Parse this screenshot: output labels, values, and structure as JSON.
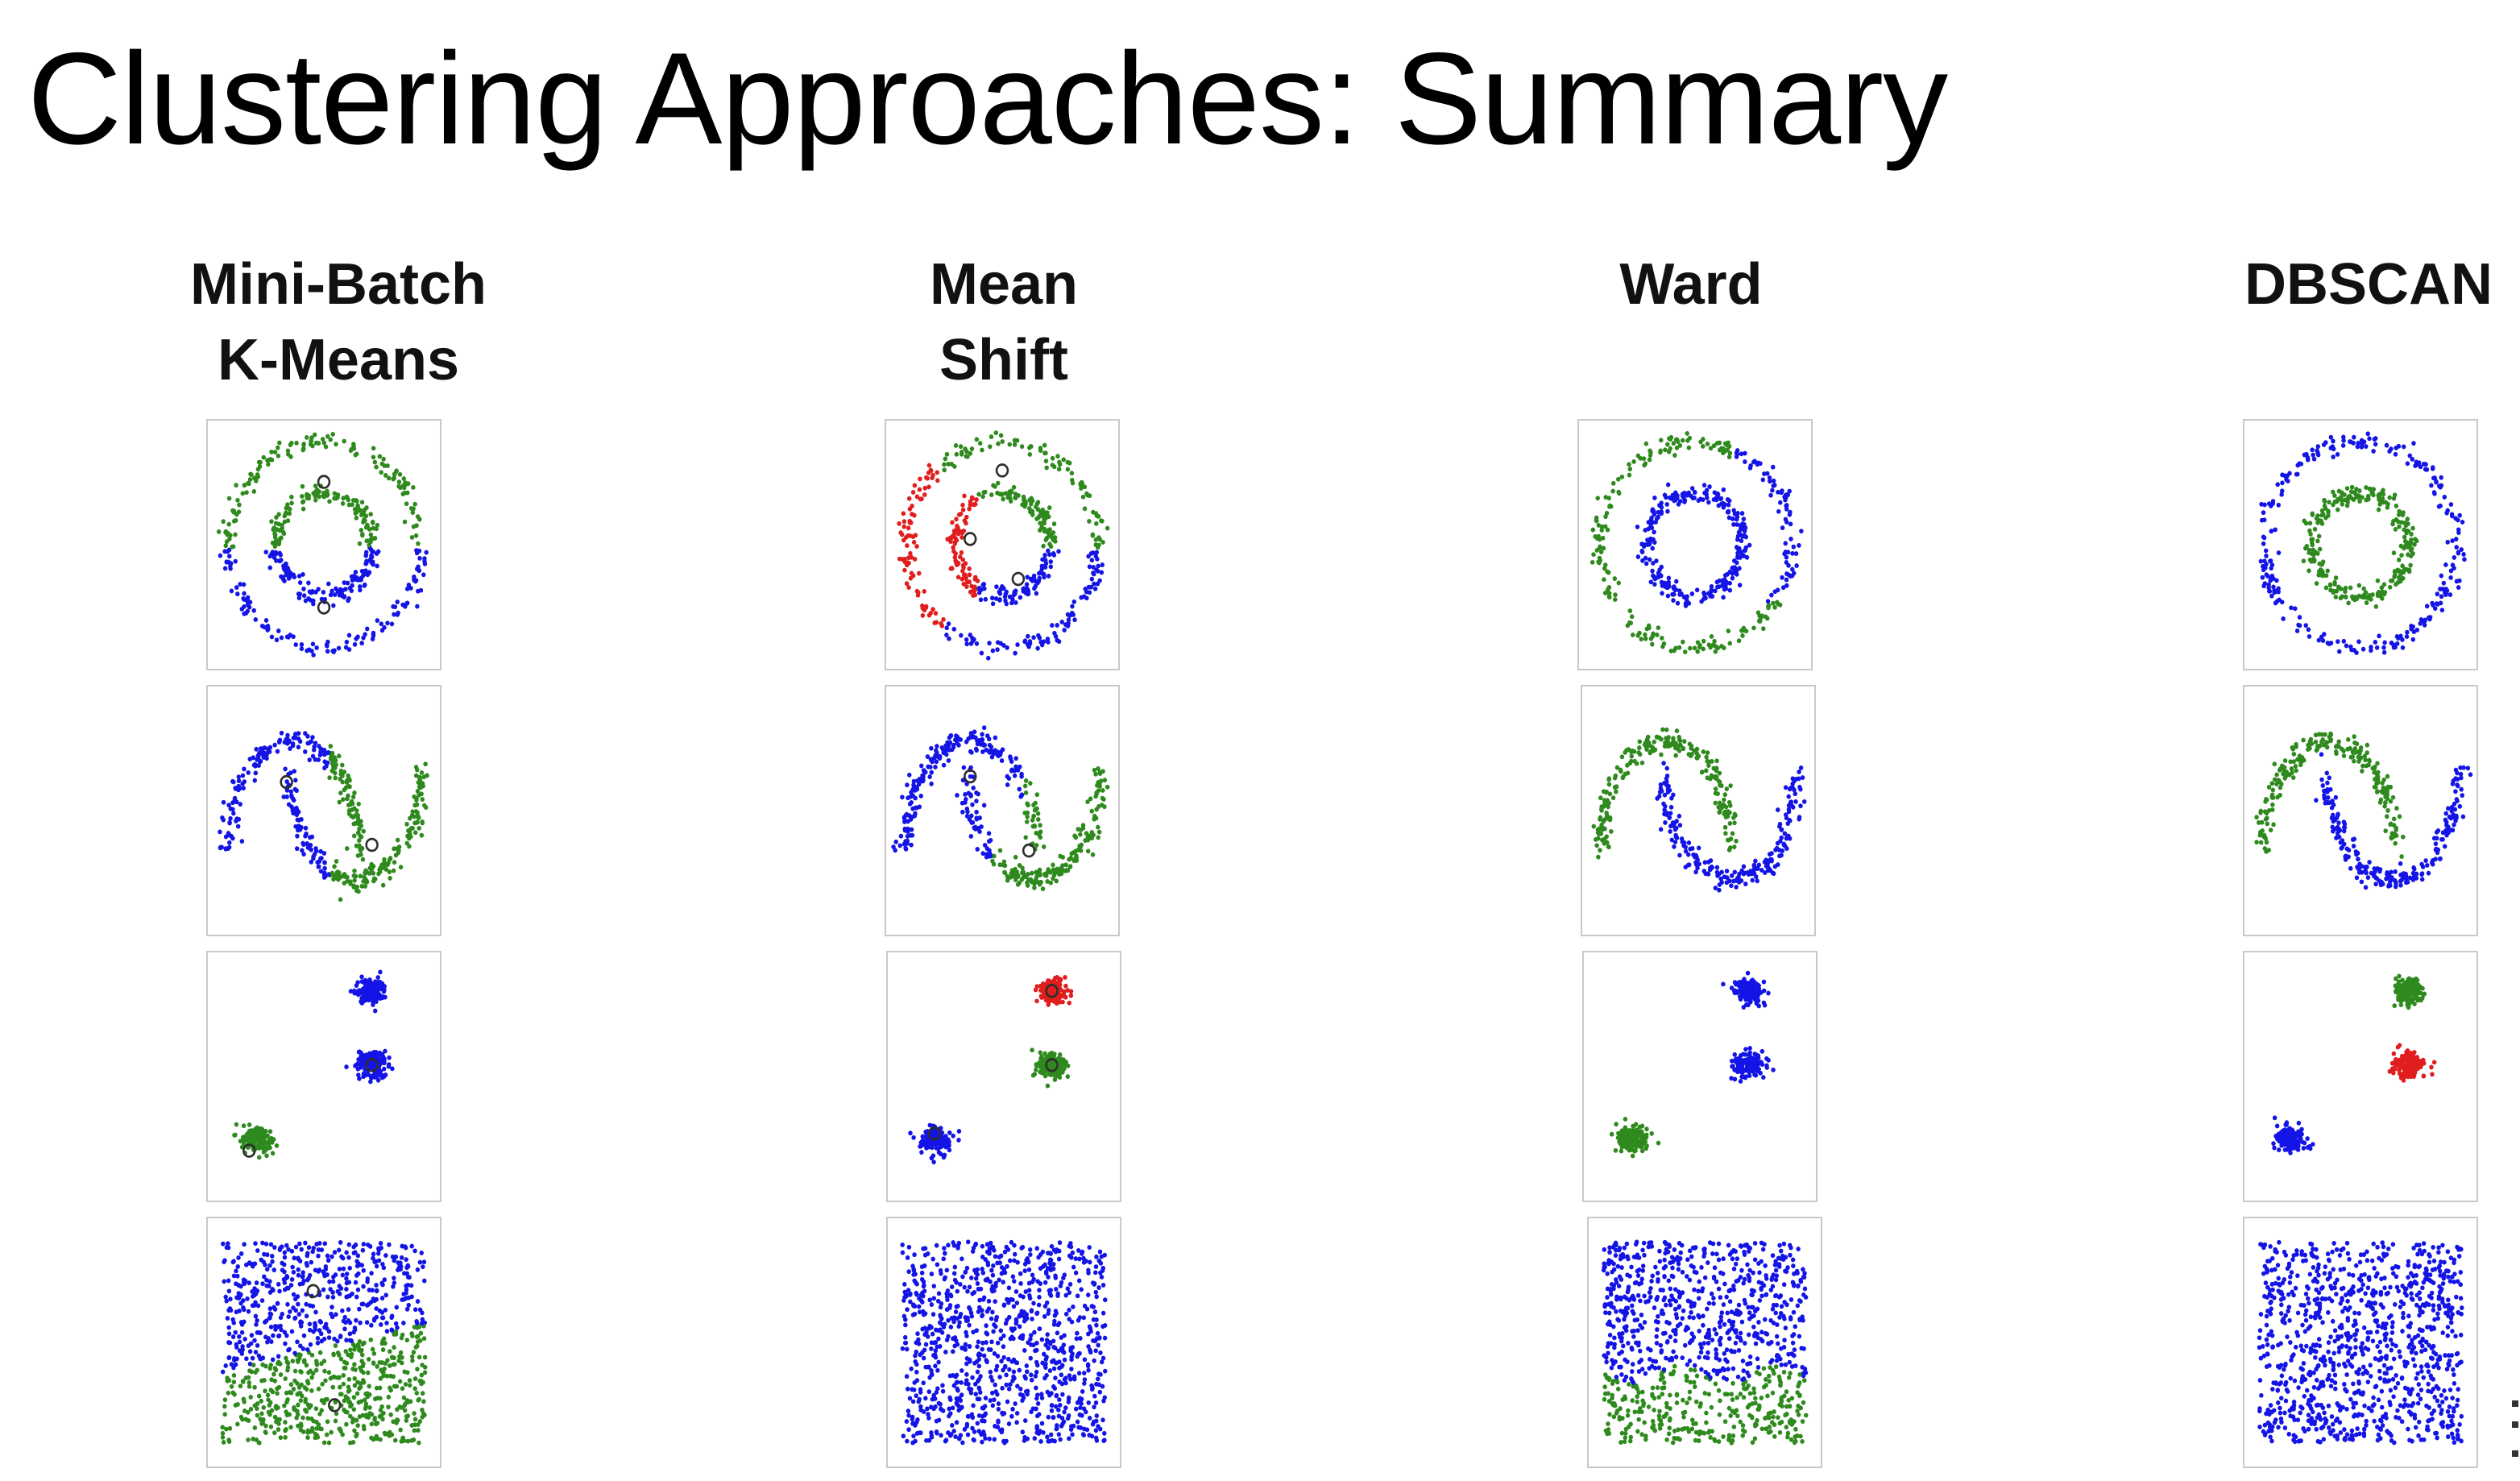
{
  "title": "Clustering Approaches: Summary",
  "colors": {
    "blue": "#1414e6",
    "green": "#2f8a1e",
    "red": "#e01e1e",
    "center": "#2e2e2e",
    "panel_border": "#c9c9c9"
  },
  "datasets": [
    "noisy-circles",
    "noisy-moons",
    "blobs",
    "no-structure"
  ],
  "algorithms": [
    {
      "id": "mini-batch-kmeans",
      "title": "Mini-Batch\nK-Means",
      "panels": [
        {
          "dataset": "noisy-circles",
          "clusters": [
            "green",
            "blue"
          ],
          "rule": "kmeans-circles",
          "centers": [
            [
              0.0,
              0.55
            ],
            [
              0.0,
              -0.55
            ]
          ]
        },
        {
          "dataset": "noisy-moons",
          "clusters": [
            "blue",
            "green"
          ],
          "rule": "kmeans-moons",
          "centers": [
            [
              -0.35,
              0.25
            ],
            [
              0.45,
              -0.3
            ]
          ]
        },
        {
          "dataset": "blobs",
          "clusters": [
            "blue",
            "blue",
            "green"
          ],
          "rule": "blobs",
          "centers": [
            [
              0.45,
              0.1
            ],
            [
              -0.7,
              -0.65
            ]
          ]
        },
        {
          "dataset": "no-structure",
          "clusters": [
            "blue",
            "green"
          ],
          "rule": "kmeans-square",
          "centers": [
            [
              -0.1,
              0.45
            ],
            [
              0.1,
              -0.55
            ]
          ]
        }
      ]
    },
    {
      "id": "mean-shift",
      "title": "Mean\nShift",
      "panels": [
        {
          "dataset": "noisy-circles",
          "clusters": [
            "green",
            "blue",
            "red"
          ],
          "rule": "meanshift-circles",
          "centers": [
            [
              0.0,
              0.65
            ],
            [
              -0.3,
              0.05
            ],
            [
              0.15,
              -0.3
            ]
          ]
        },
        {
          "dataset": "noisy-moons",
          "clusters": [
            "blue",
            "green"
          ],
          "rule": "meanshift-moons",
          "centers": [
            [
              -0.3,
              0.3
            ],
            [
              0.25,
              -0.35
            ]
          ]
        },
        {
          "dataset": "blobs",
          "clusters": [
            "red",
            "green",
            "blue"
          ],
          "rule": "blobs",
          "centers": [
            [
              0.45,
              0.75
            ],
            [
              0.45,
              0.1
            ],
            [
              -0.65,
              -0.5
            ]
          ]
        },
        {
          "dataset": "no-structure",
          "clusters": [
            "blue"
          ],
          "rule": "single",
          "centers": []
        }
      ]
    },
    {
      "id": "ward",
      "title": "Ward",
      "panels": [
        {
          "dataset": "noisy-circles",
          "clusters": [
            "green",
            "blue"
          ],
          "rule": "ward-circles",
          "centers": []
        },
        {
          "dataset": "noisy-moons",
          "clusters": [
            "green",
            "blue"
          ],
          "rule": "ward-moons",
          "centers": []
        },
        {
          "dataset": "blobs",
          "clusters": [
            "blue",
            "blue",
            "green"
          ],
          "rule": "blobs",
          "centers": []
        },
        {
          "dataset": "no-structure",
          "clusters": [
            "blue",
            "green"
          ],
          "rule": "ward-square",
          "centers": []
        }
      ]
    },
    {
      "id": "dbscan",
      "title": "DBSCAN",
      "panels": [
        {
          "dataset": "noisy-circles",
          "clusters": [
            "blue",
            "green"
          ],
          "rule": "dbscan-circles",
          "centers": []
        },
        {
          "dataset": "noisy-moons",
          "clusters": [
            "green",
            "blue"
          ],
          "rule": "dbscan-moons",
          "centers": []
        },
        {
          "dataset": "blobs",
          "clusters": [
            "green",
            "red",
            "blue"
          ],
          "rule": "blobs",
          "centers": []
        },
        {
          "dataset": "no-structure",
          "clusters": [
            "blue"
          ],
          "rule": "single",
          "centers": []
        }
      ]
    }
  ]
}
